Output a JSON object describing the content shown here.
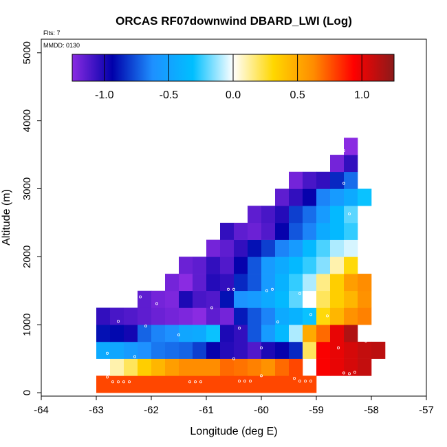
{
  "chart_data": {
    "type": "heatmap",
    "title": "ORCAS RF07downwind DBARD_LWI (Log)",
    "xlabel": "Longitude (deg E)",
    "ylabel": "Altitude (m)",
    "xlim": [
      -64,
      -57
    ],
    "ylim": [
      -50,
      5200
    ],
    "x_ticks": [
      "-64",
      "-63",
      "-62",
      "-61",
      "-60",
      "-59",
      "-58",
      "-57"
    ],
    "y_ticks": [
      "0",
      "1000",
      "2000",
      "3000",
      "4000",
      "5000"
    ],
    "annotations": [
      "Flts: 7",
      "MMDD: 0130"
    ],
    "colorbar": {
      "range": [
        -1.25,
        1.25
      ],
      "tick_values": [
        -1.0,
        -0.5,
        0.0,
        0.5,
        1.0
      ],
      "tick_labels": [
        "-1.0",
        "-0.5",
        "0.0",
        "0.5",
        "1.0"
      ],
      "colors": [
        "#8a2be2",
        "#0000aa",
        "#1e90ff",
        "#00bfff",
        "#ffffff",
        "#ffd700",
        "#ff8c00",
        "#ff0000",
        "#8b1a1a"
      ]
    },
    "cell_width_deg": 0.25,
    "cell_height_m": 250,
    "cells": [
      {
        "row": "0-250 m, lon -63.0 to -59.0",
        "y": 125,
        "x_start": -63.0,
        "values": [
          0.78,
          0.78,
          0.78,
          0.78,
          0.78,
          0.78,
          0.78,
          0.78,
          0.78,
          0.78,
          0.78,
          0.78,
          0.78,
          0.78,
          0.78,
          0.78
        ]
      },
      {
        "row": "250-500 m",
        "y": 375,
        "x_start": -62.75,
        "values": [
          0.1,
          0.2,
          0.35,
          0.45,
          0.55,
          0.62,
          0.62,
          0.62,
          0.7,
          0.68,
          0.65,
          0.6,
          0.7,
          0.78
        ]
      },
      {
        "row": "250-500 m east",
        "y": 375,
        "x_start": -59.0,
        "values": [
          0.95,
          1.0,
          1.05,
          1.1
        ]
      },
      {
        "row": "500-750 m",
        "y": 625,
        "x_start": -63.0,
        "values": [
          -0.45,
          -0.48,
          -0.55,
          -0.62,
          -0.68,
          -0.7,
          -0.72,
          -0.8,
          -0.95,
          -1.02,
          -1.05,
          -1.12,
          -1.0,
          -0.95,
          -0.85,
          0.2,
          0.95,
          1.0,
          1.05,
          1.1,
          1.12
        ]
      },
      {
        "row": "750-1000 m",
        "y": 875,
        "x_start": -63.0,
        "values": [
          -0.9,
          -0.92,
          -0.98,
          -0.72,
          -0.65,
          -0.62,
          -0.48,
          -0.45,
          -0.3,
          -1.0,
          -1.05,
          -0.75,
          -0.55,
          -0.35,
          -0.1,
          0.5,
          0.7,
          1.0,
          1.15
        ]
      },
      {
        "row": "1000-1250 m",
        "y": 1125,
        "x_start": -63.0,
        "values": [
          -1.05,
          -1.1,
          -1.12,
          -1.15,
          -1.18,
          -1.2,
          -1.22,
          -1.25,
          -1.15,
          -1.2,
          -0.88,
          -0.75,
          -0.65,
          -0.45,
          -0.4,
          -0.3,
          0.3,
          0.45,
          0.6,
          0.65
        ]
      },
      {
        "row": "1250-1500 m",
        "y": 1375,
        "x_start": -62.25,
        "values": [
          -1.15,
          -1.2,
          -1.22,
          -1.0,
          -1.1,
          -1.12,
          -0.9,
          -0.6,
          -0.55,
          -0.45,
          -0.35,
          -0.2,
          0.0,
          0.2,
          0.35,
          0.45,
          0.6
        ]
      },
      {
        "row": "1500-1750 m",
        "y": 1625,
        "x_start": -61.75,
        "values": [
          -1.2,
          -1.25,
          -1.15,
          -1.02,
          -1.05,
          -0.85,
          -0.75,
          -0.55,
          -0.4,
          -0.25,
          -0.1,
          0.15,
          0.35,
          0.55,
          0.62
        ]
      },
      {
        "row": "1750-2000 m",
        "y": 1875,
        "x_start": -61.5,
        "values": [
          -1.18,
          -1.15,
          -1.05,
          -1.12,
          -0.95,
          -0.75,
          -0.55,
          -0.45,
          -0.35,
          -0.25,
          -0.15,
          0.1,
          0.3
        ]
      },
      {
        "row": "2000-2250 m",
        "y": 2125,
        "x_start": -61.0,
        "values": [
          -1.2,
          -1.15,
          -1.05,
          -0.9,
          -0.8,
          -0.65,
          -0.55,
          -0.35,
          -0.22,
          -0.1,
          -0.05
        ]
      },
      {
        "row": "2250-2500 m",
        "y": 2375,
        "x_start": -60.75,
        "values": [
          -1.05,
          -1.15,
          -1.18,
          -1.12,
          -0.95,
          -0.75,
          -0.65,
          -0.45,
          -0.35,
          -0.25
        ]
      },
      {
        "row": "2500-2750 m",
        "y": 2625,
        "x_start": -60.25,
        "values": [
          -1.15,
          -1.1,
          -1.02,
          -0.8,
          -0.7,
          -0.55,
          -0.35,
          -0.2
        ]
      },
      {
        "row": "2750-3000 m",
        "y": 2875,
        "x_start": -59.75,
        "values": [
          -1.15,
          -1.05,
          -0.95,
          -0.65,
          -0.55,
          -0.45,
          -0.3
        ]
      },
      {
        "row": "3000-3250 m",
        "y": 3125,
        "x_start": -59.5,
        "values": [
          -1.2,
          -1.1,
          -1.05,
          -0.85,
          -0.7
        ]
      },
      {
        "row": "3250-3500 m",
        "y": 3375,
        "x_start": -58.75,
        "values": [
          -1.2,
          -1.05
        ]
      },
      {
        "row": "3500-3750 m",
        "y": 3625,
        "x_start": -58.5,
        "values": [
          -1.25
        ]
      }
    ]
  }
}
